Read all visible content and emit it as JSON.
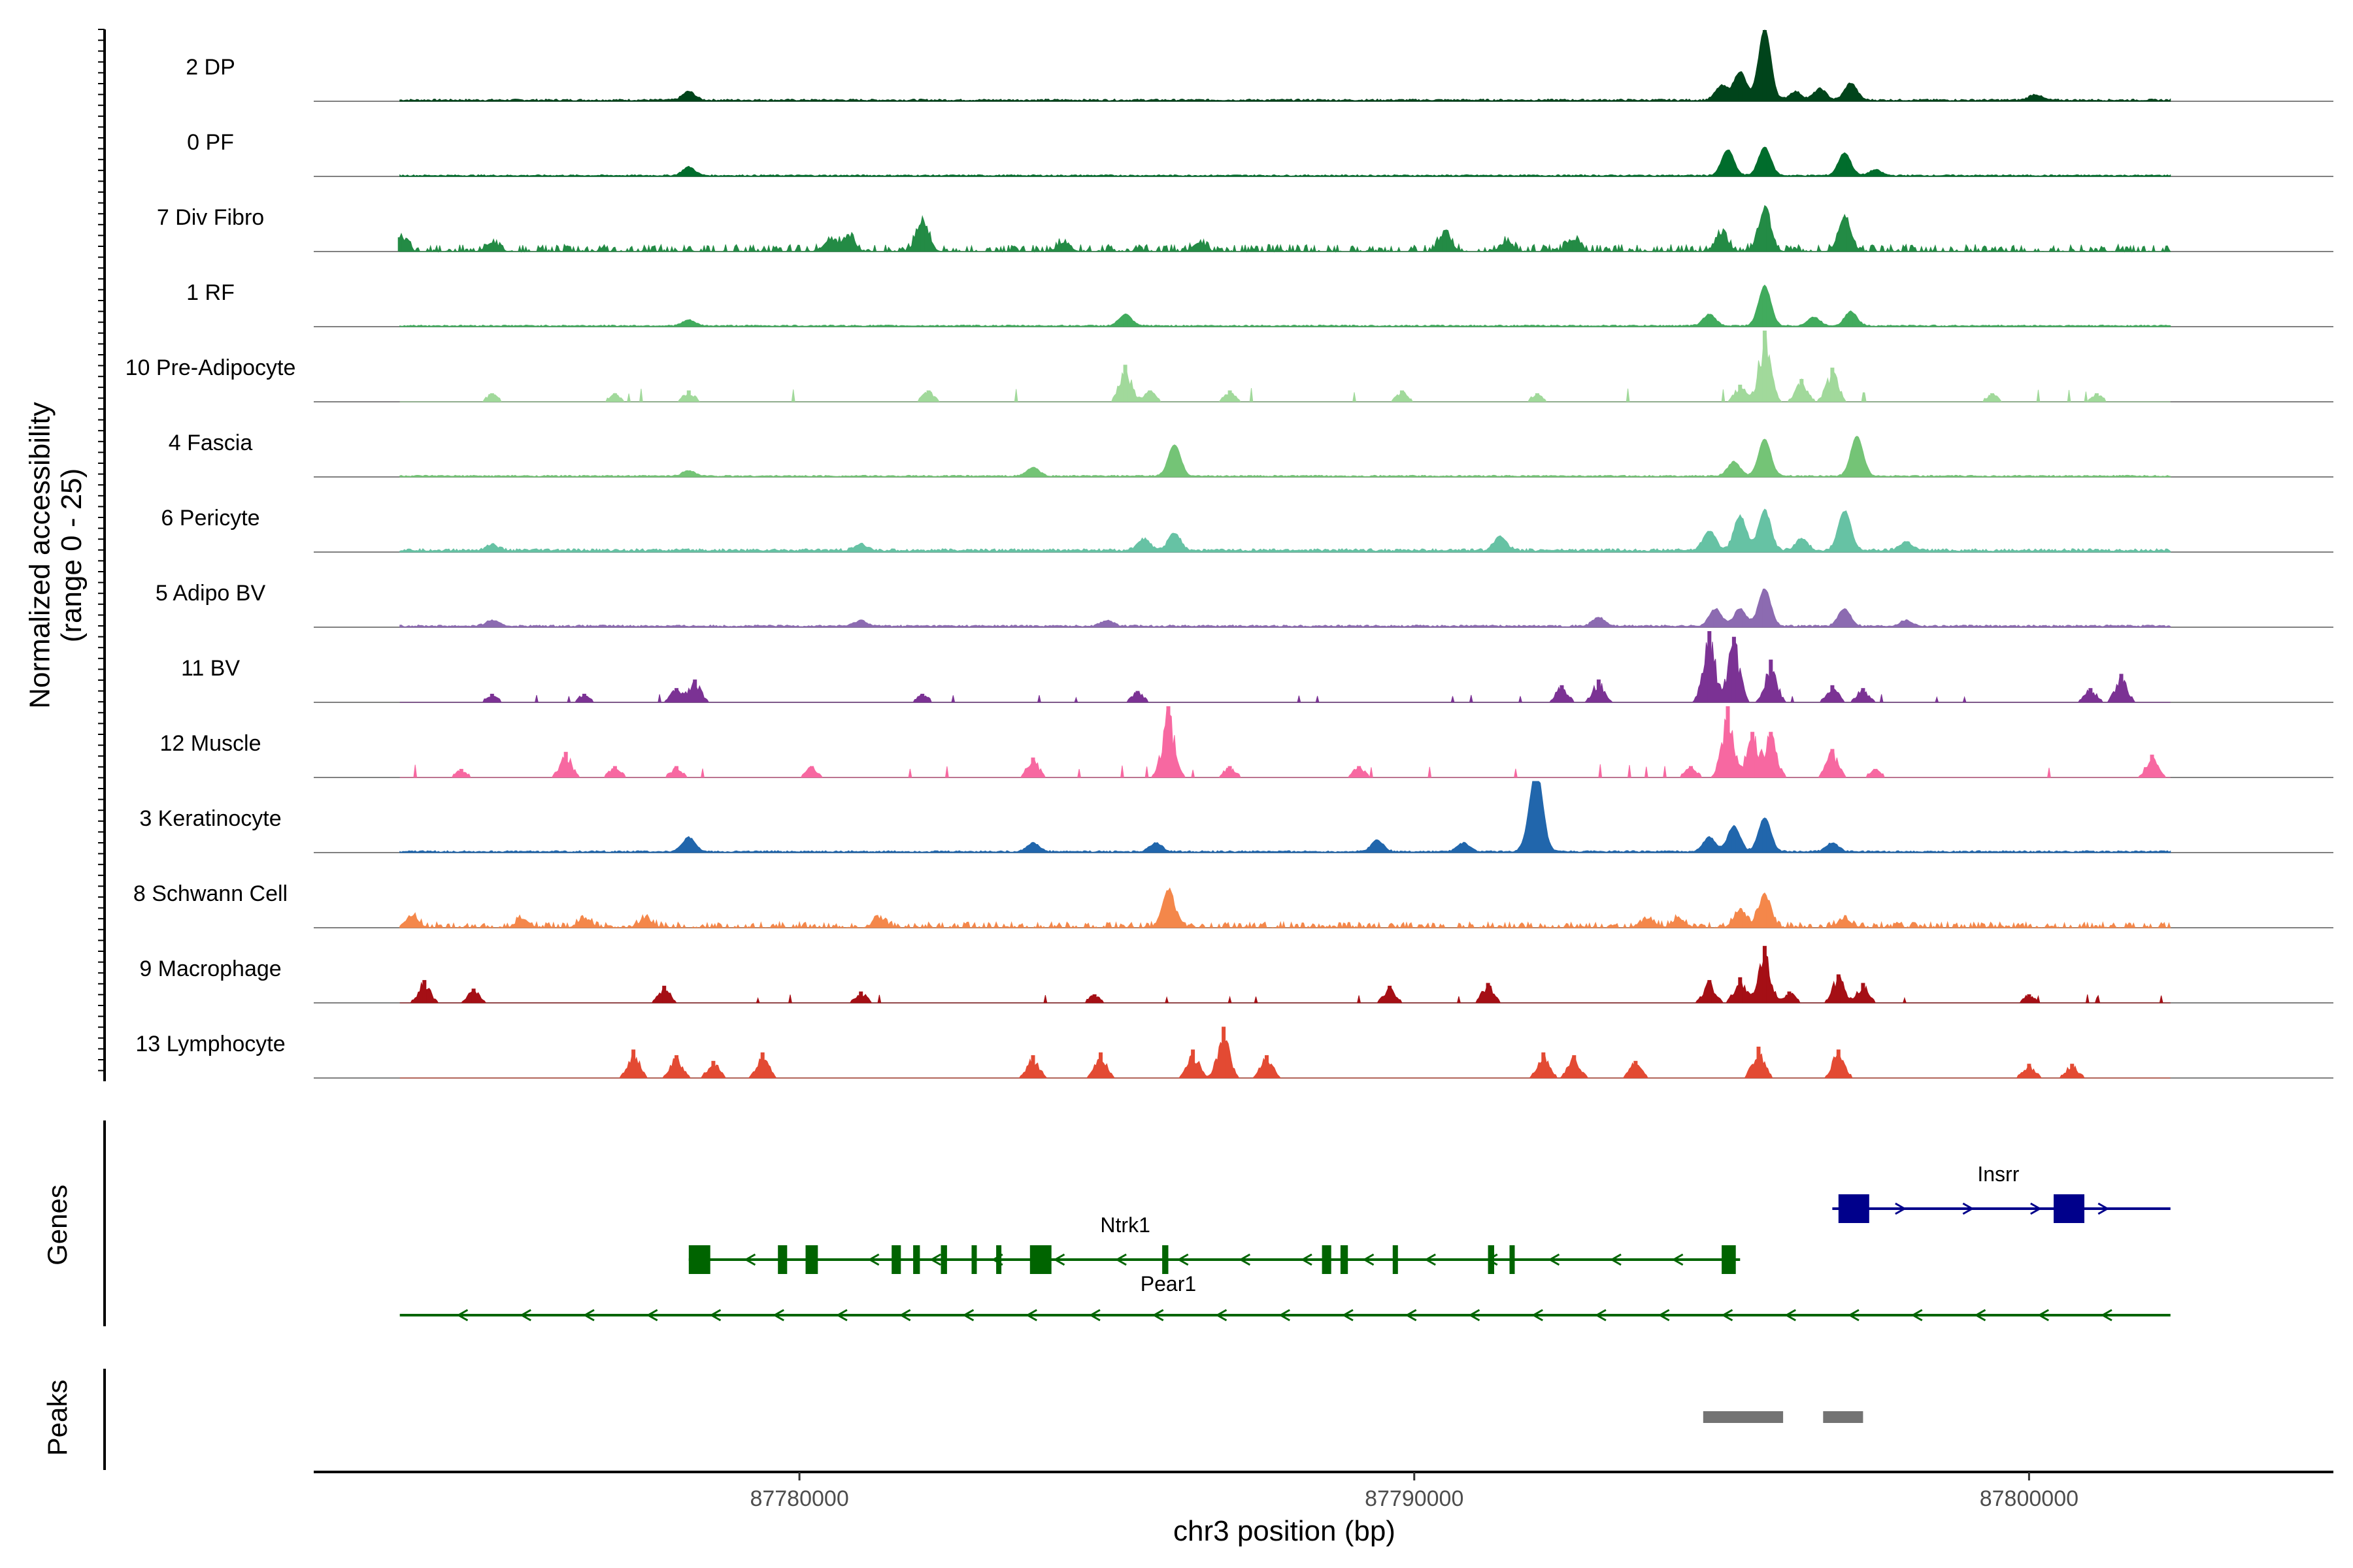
{
  "chart_data": {
    "type": "area",
    "title": "",
    "ylabel": "Normalized accessibility\n(range 0 - 25)",
    "xlabel": "chr3 position (bp)",
    "ylim": [
      0,
      25
    ],
    "xlim": [
      87772100,
      87804950
    ],
    "xticks": [
      {
        "value": 87780000,
        "label": "87780000"
      },
      {
        "value": 87790000,
        "label": "87790000"
      },
      {
        "value": 87800000,
        "label": "87800000"
      }
    ],
    "region_start": 87773500,
    "region_end": 87802300,
    "series": [
      {
        "name": "2 DP",
        "color": "#00441B",
        "mode": "smooth",
        "base": 0.8,
        "peaks": [
          [
            87778200,
            3
          ],
          [
            87795000,
            5
          ],
          [
            87795300,
            10
          ],
          [
            87795700,
            25
          ],
          [
            87796200,
            3
          ],
          [
            87796600,
            4
          ],
          [
            87797100,
            6
          ],
          [
            87800100,
            2
          ]
        ]
      },
      {
        "name": "0 PF",
        "color": "#006D2C",
        "mode": "smooth",
        "base": 0.6,
        "peaks": [
          [
            87778200,
            3
          ],
          [
            87795100,
            9
          ],
          [
            87795700,
            10
          ],
          [
            87797000,
            8
          ],
          [
            87797500,
            2
          ]
        ]
      },
      {
        "name": "7 Div Fibro",
        "color": "#238B45",
        "mode": "dense",
        "base": 2.5,
        "peaks": [
          [
            87773500,
            5
          ],
          [
            87775000,
            3
          ],
          [
            87780500,
            4
          ],
          [
            87780800,
            5
          ],
          [
            87782000,
            10
          ],
          [
            87784300,
            3
          ],
          [
            87786500,
            3
          ],
          [
            87790500,
            6
          ],
          [
            87791500,
            3
          ],
          [
            87792600,
            4
          ],
          [
            87795000,
            6
          ],
          [
            87795700,
            14
          ],
          [
            87797000,
            12
          ]
        ]
      },
      {
        "name": "1 RF",
        "color": "#41AB5D",
        "mode": "smooth",
        "base": 0.6,
        "peaks": [
          [
            87778200,
            2
          ],
          [
            87785300,
            4
          ],
          [
            87794800,
            4
          ],
          [
            87795700,
            14
          ],
          [
            87796500,
            3
          ],
          [
            87797100,
            5
          ]
        ]
      },
      {
        "name": "10 Pre-Adipocyte",
        "color": "#A1D99B",
        "mode": "bars",
        "base": 2.5,
        "peaks": [
          [
            87775000,
            3
          ],
          [
            87777000,
            3
          ],
          [
            87778200,
            4
          ],
          [
            87782100,
            4
          ],
          [
            87785300,
            13
          ],
          [
            87785700,
            4
          ],
          [
            87787000,
            4
          ],
          [
            87789800,
            4
          ],
          [
            87792000,
            3
          ],
          [
            87795300,
            6
          ],
          [
            87795700,
            25
          ],
          [
            87796300,
            8
          ],
          [
            87796800,
            12
          ],
          [
            87799400,
            3
          ],
          [
            87801100,
            3
          ]
        ]
      },
      {
        "name": "4 Fascia",
        "color": "#74C476",
        "mode": "smooth",
        "base": 0.6,
        "peaks": [
          [
            87778200,
            2
          ],
          [
            87783800,
            3
          ],
          [
            87786100,
            11
          ],
          [
            87795200,
            5
          ],
          [
            87795700,
            13
          ],
          [
            87797200,
            14
          ]
        ]
      },
      {
        "name": "6 Pericyte",
        "color": "#66C2A4",
        "mode": "smooth",
        "base": 1.2,
        "peaks": [
          [
            87775000,
            2
          ],
          [
            87781000,
            2
          ],
          [
            87785600,
            4
          ],
          [
            87786100,
            6
          ],
          [
            87791400,
            5
          ],
          [
            87794800,
            7
          ],
          [
            87795300,
            12
          ],
          [
            87795700,
            14
          ],
          [
            87796300,
            4
          ],
          [
            87797000,
            14
          ],
          [
            87798000,
            3
          ]
        ]
      },
      {
        "name": "5 Adipo BV",
        "color": "#8C6BB1",
        "mode": "smooth",
        "base": 0.8,
        "peaks": [
          [
            87775000,
            2
          ],
          [
            87781000,
            2
          ],
          [
            87785000,
            2
          ],
          [
            87793000,
            3
          ],
          [
            87794900,
            6
          ],
          [
            87795300,
            6
          ],
          [
            87795700,
            13
          ],
          [
            87797000,
            6
          ],
          [
            87798000,
            2
          ]
        ]
      },
      {
        "name": "11 BV",
        "color": "#7B3294",
        "mode": "bars",
        "base": 1.5,
        "peaks": [
          [
            87775000,
            3
          ],
          [
            87776500,
            3
          ],
          [
            87778000,
            5
          ],
          [
            87778300,
            8
          ],
          [
            87782000,
            3
          ],
          [
            87785500,
            4
          ],
          [
            87792400,
            6
          ],
          [
            87793000,
            8
          ],
          [
            87794800,
            25
          ],
          [
            87795200,
            23
          ],
          [
            87795800,
            15
          ],
          [
            87796800,
            6
          ],
          [
            87797300,
            5
          ],
          [
            87801000,
            5
          ],
          [
            87801500,
            10
          ]
        ]
      },
      {
        "name": "12 Muscle",
        "color": "#F768A1",
        "mode": "bars",
        "base": 2.5,
        "peaks": [
          [
            87774500,
            3
          ],
          [
            87776200,
            9
          ],
          [
            87777000,
            4
          ],
          [
            87778000,
            4
          ],
          [
            87780200,
            4
          ],
          [
            87783800,
            7
          ],
          [
            87786000,
            25
          ],
          [
            87787000,
            4
          ],
          [
            87789100,
            4
          ],
          [
            87794500,
            4
          ],
          [
            87795100,
            25
          ],
          [
            87795500,
            16
          ],
          [
            87795800,
            16
          ],
          [
            87796800,
            10
          ],
          [
            87797500,
            3
          ],
          [
            87802000,
            8
          ]
        ]
      },
      {
        "name": "3 Keratinocyte",
        "color": "#2166AC",
        "mode": "smooth",
        "base": 0.7,
        "peaks": [
          [
            87778200,
            5
          ],
          [
            87783800,
            3
          ],
          [
            87785800,
            3
          ],
          [
            87789400,
            4
          ],
          [
            87790800,
            3
          ],
          [
            87791900,
            6
          ],
          [
            87792000,
            25
          ],
          [
            87794800,
            5
          ],
          [
            87795200,
            9
          ],
          [
            87795700,
            12
          ],
          [
            87796800,
            3
          ]
        ]
      },
      {
        "name": "8 Schwann Cell",
        "color": "#F4874A",
        "mode": "dense",
        "base": 2,
        "peaks": [
          [
            87773700,
            4
          ],
          [
            87775500,
            3
          ],
          [
            87776500,
            3
          ],
          [
            87777500,
            3
          ],
          [
            87781300,
            3
          ],
          [
            87786000,
            13
          ],
          [
            87793800,
            3
          ],
          [
            87794300,
            3
          ],
          [
            87795300,
            6
          ],
          [
            87795700,
            11
          ],
          [
            87797000,
            3
          ]
        ]
      },
      {
        "name": "9 Macrophage",
        "color": "#A50F15",
        "mode": "bars",
        "base": 1.5,
        "peaks": [
          [
            87773900,
            8
          ],
          [
            87774700,
            5
          ],
          [
            87777800,
            6
          ],
          [
            87781000,
            4
          ],
          [
            87784800,
            3
          ],
          [
            87789600,
            6
          ],
          [
            87791200,
            7
          ],
          [
            87794800,
            8
          ],
          [
            87795300,
            9
          ],
          [
            87795700,
            20
          ],
          [
            87796100,
            4
          ],
          [
            87796900,
            10
          ],
          [
            87797300,
            7
          ],
          [
            87800000,
            3
          ]
        ]
      },
      {
        "name": "13 Lymphocyte",
        "color": "#E34A33",
        "mode": "bars",
        "base": 0,
        "peaks": [
          [
            87777300,
            10
          ],
          [
            87778000,
            8
          ],
          [
            87778600,
            6
          ],
          [
            87779400,
            9
          ],
          [
            87783800,
            8
          ],
          [
            87784900,
            9
          ],
          [
            87786400,
            10
          ],
          [
            87786900,
            18
          ],
          [
            87787600,
            8
          ],
          [
            87792100,
            9
          ],
          [
            87792600,
            8
          ],
          [
            87793600,
            6
          ],
          [
            87795600,
            11
          ],
          [
            87796900,
            10
          ],
          [
            87800000,
            5
          ],
          [
            87800700,
            5
          ]
        ]
      }
    ],
    "genes_panel": {
      "title": "Genes",
      "genes": [
        {
          "name": "Insrr",
          "color": "#00008B",
          "strand": "+",
          "row": 0,
          "start": 87796800,
          "end": 87802300,
          "exons": [
            [
              87796900,
              87797400
            ],
            [
              87800400,
              87800900
            ]
          ]
        },
        {
          "name": "Ntrk1",
          "color": "#006400",
          "strand": "-",
          "row": 1,
          "start": 87778200,
          "end": 87795300,
          "exons": [
            [
              87778200,
              87778550
            ],
            [
              87779650,
              87779800
            ],
            [
              87780100,
              87780300
            ],
            [
              87781500,
              87781650
            ],
            [
              87781850,
              87781960
            ],
            [
              87782300,
              87782400
            ],
            [
              87782800,
              87782870
            ],
            [
              87783200,
              87783250
            ],
            [
              87783750,
              87784100
            ],
            [
              87785900,
              87786000
            ],
            [
              87788500,
              87788650
            ],
            [
              87788800,
              87788920
            ],
            [
              87789650,
              87789700
            ],
            [
              87791200,
              87791300
            ],
            [
              87791550,
              87791620
            ],
            [
              87795000,
              87795230
            ]
          ]
        },
        {
          "name": "Pear1",
          "color": "#006400",
          "strand": "-",
          "row": 2,
          "start": 87773500,
          "end": 87802300,
          "exons": []
        }
      ]
    },
    "peaks_panel": {
      "title": "Peaks",
      "color": "#737373",
      "regions": [
        [
          87794700,
          87796000
        ],
        [
          87796650,
          87797300
        ]
      ]
    }
  }
}
